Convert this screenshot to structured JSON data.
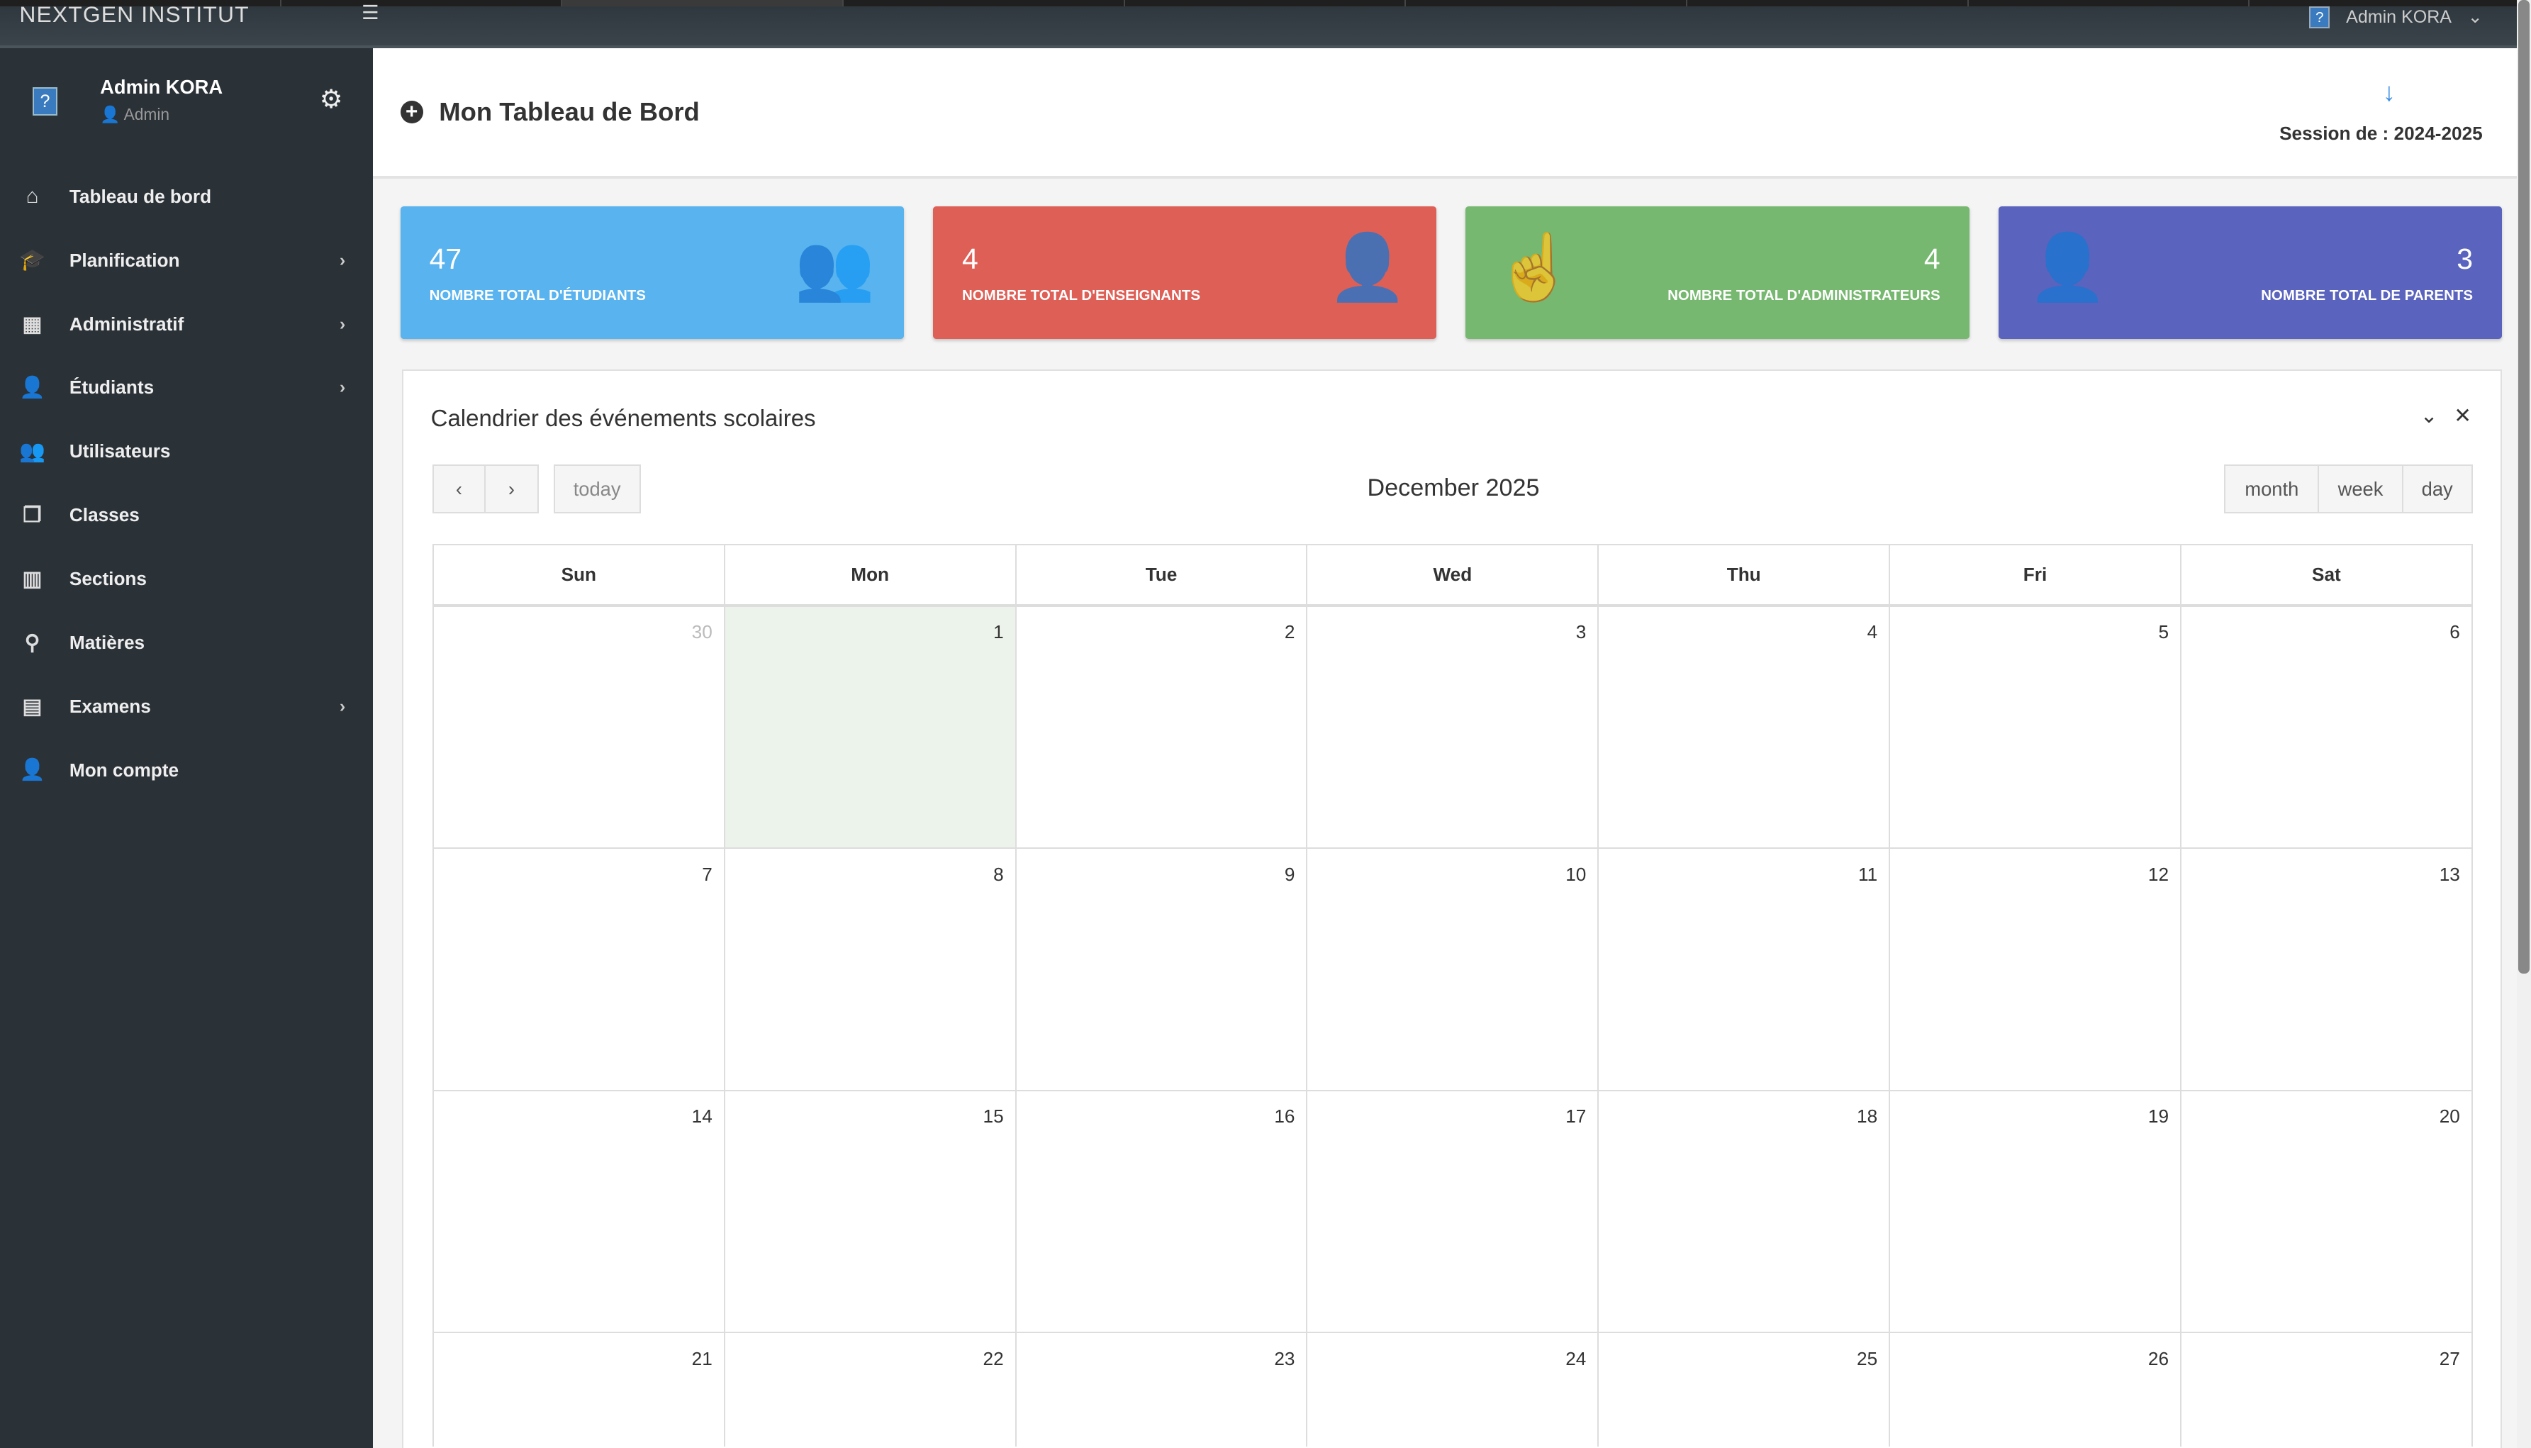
{
  "topbar": {
    "brand": "NEXTGEN INSTITUT",
    "menu_icon": "hamburger-icon",
    "user": "Admin KORA"
  },
  "sidebar": {
    "user": {
      "name": "Admin KORA",
      "role": "Admin"
    },
    "items": [
      {
        "label": "Tableau de bord",
        "icon": "home-icon",
        "glyph": "⌂",
        "chevron": false
      },
      {
        "label": "Planification",
        "icon": "graduation-cap-icon",
        "glyph": "🎓",
        "chevron": true
      },
      {
        "label": "Administratif",
        "icon": "building-icon",
        "glyph": "▦",
        "chevron": true
      },
      {
        "label": "Étudiants",
        "icon": "student-icon",
        "glyph": "👤",
        "chevron": true
      },
      {
        "label": "Utilisateurs",
        "icon": "users-icon",
        "glyph": "👥",
        "chevron": false
      },
      {
        "label": "Classes",
        "icon": "classes-icon",
        "glyph": "❐",
        "chevron": false
      },
      {
        "label": "Sections",
        "icon": "sections-icon",
        "glyph": "▥",
        "chevron": false
      },
      {
        "label": "Matières",
        "icon": "map-pin-icon",
        "glyph": "⚲",
        "chevron": false
      },
      {
        "label": "Examens",
        "icon": "books-icon",
        "glyph": "▤",
        "chevron": true
      },
      {
        "label": "Mon compte",
        "icon": "user-icon",
        "glyph": "👤",
        "chevron": false
      }
    ]
  },
  "header": {
    "title": "Mon Tableau de Bord",
    "session": "Session de : 2024-2025"
  },
  "cards": [
    {
      "value": "47",
      "label": "NOMBRE TOTAL D'ÉTUDIANTS",
      "color": "#58b3ef",
      "icon": "users-icon"
    },
    {
      "value": "4",
      "label": "NOMBRE TOTAL D'ENSEIGNANTS",
      "color": "#de5f56",
      "icon": "teacher-icon"
    },
    {
      "value": "4",
      "label": "NOMBRE TOTAL D'ADMINISTRATEURS",
      "color": "#76b86f",
      "icon": "hand-pointer-icon"
    },
    {
      "value": "3",
      "label": "NOMBRE TOTAL DE PARENTS",
      "color": "#5a63bd",
      "icon": "user-icon"
    }
  ],
  "calendar": {
    "title": "Calendrier des événements scolaires",
    "month": "December 2025",
    "today_label": "today",
    "views": [
      "month",
      "week",
      "day"
    ],
    "weekdays": [
      "Sun",
      "Mon",
      "Tue",
      "Wed",
      "Thu",
      "Fri",
      "Sat"
    ],
    "weeks": [
      [
        "30",
        "1",
        "2",
        "3",
        "4",
        "5",
        "6"
      ],
      [
        "7",
        "8",
        "9",
        "10",
        "11",
        "12",
        "13"
      ],
      [
        "14",
        "15",
        "16",
        "17",
        "18",
        "19",
        "20"
      ],
      [
        "21",
        "22",
        "23",
        "24",
        "25",
        "26",
        "27"
      ]
    ],
    "today": "1"
  }
}
